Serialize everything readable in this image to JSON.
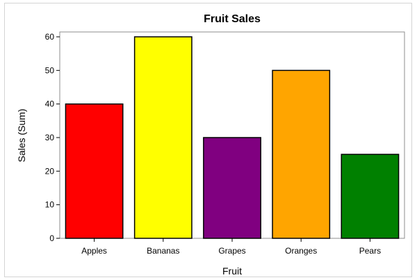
{
  "chart_data": {
    "type": "bar",
    "title": "Fruit Sales",
    "xlabel": "Fruit",
    "ylabel": "Sales (Sum)",
    "categories": [
      "Apples",
      "Bananas",
      "Grapes",
      "Oranges",
      "Pears"
    ],
    "values": [
      40,
      60,
      30,
      50,
      25
    ],
    "colors": [
      "#ff0000",
      "#ffff00",
      "#800080",
      "#ffa500",
      "#008000"
    ],
    "ylim": [
      0,
      60
    ],
    "yticks": [
      "0",
      "10",
      "20",
      "30",
      "40",
      "50",
      "60"
    ],
    "grid": false,
    "legend": "none"
  }
}
